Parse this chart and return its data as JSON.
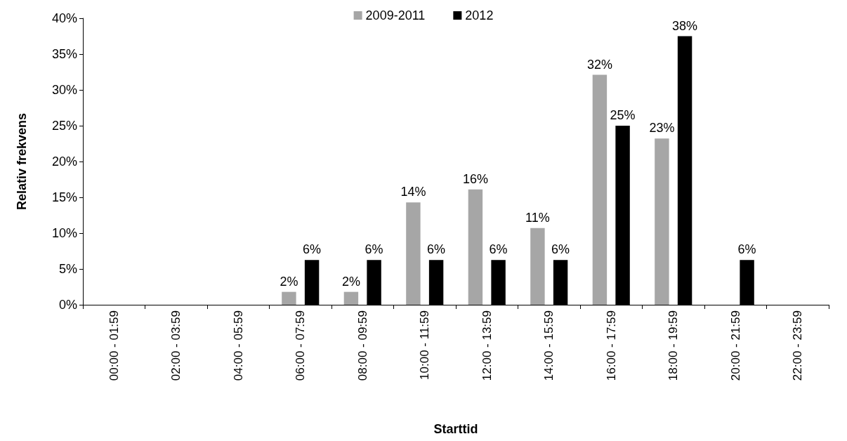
{
  "chart_data": {
    "type": "bar",
    "xlabel": "Starttid",
    "ylabel": "Relativ frekvens",
    "categories": [
      "00:00 - 01:59",
      "02:00 - 03:59",
      "04:00 - 05:59",
      "06:00 - 07:59",
      "08:00 - 09:59",
      "10:00 - 11:59",
      "12:00 - 13:59",
      "14:00 - 15:59",
      "16:00 - 17:59",
      "18:00 - 19:59",
      "20:00 - 21:59",
      "22:00 - 23:59"
    ],
    "series": [
      {
        "name": "2009-2011",
        "color": "#a6a6a6",
        "values": [
          0,
          0,
          0,
          1.8,
          1.8,
          14.3,
          16.1,
          10.7,
          32.1,
          23.2,
          0,
          0
        ],
        "value_labels": [
          null,
          null,
          null,
          "2%",
          "2%",
          "14%",
          "16%",
          "11%",
          "32%",
          "23%",
          null,
          null
        ]
      },
      {
        "name": "2012",
        "color": "#000000",
        "values": [
          0,
          0,
          0,
          6.25,
          6.25,
          6.25,
          6.25,
          6.25,
          25,
          37.5,
          6.25,
          0
        ],
        "value_labels": [
          null,
          null,
          null,
          "6%",
          "6%",
          "6%",
          "6%",
          "6%",
          "25%",
          "38%",
          "6%",
          null
        ]
      }
    ],
    "ylim": [
      0,
      40
    ],
    "yticks": [
      {
        "value": 0,
        "label": "0%"
      },
      {
        "value": 5,
        "label": "5%"
      },
      {
        "value": 10,
        "label": "10%"
      },
      {
        "value": 15,
        "label": "15%"
      },
      {
        "value": 20,
        "label": "20%"
      },
      {
        "value": 25,
        "label": "25%"
      },
      {
        "value": 30,
        "label": "30%"
      },
      {
        "value": 35,
        "label": "35%"
      },
      {
        "value": 40,
        "label": "40%"
      }
    ],
    "grid": false,
    "legend": "top"
  }
}
